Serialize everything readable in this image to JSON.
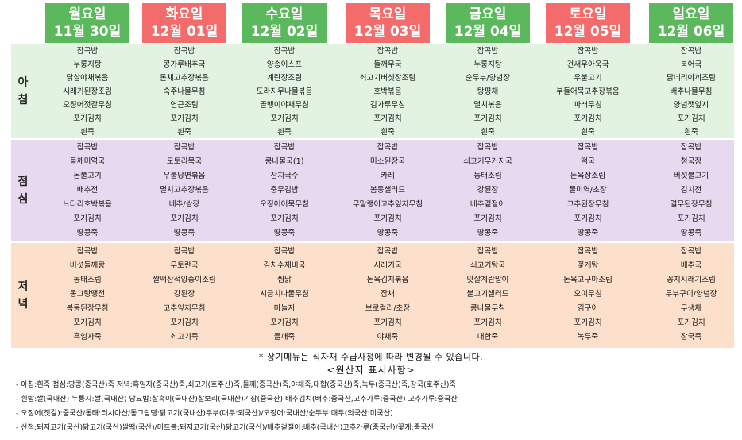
{
  "days": [
    {
      "day": "월요일",
      "date": "11월 30일",
      "color": "#5cb85c"
    },
    {
      "day": "화요일",
      "date": "12월 01일",
      "color": "#f36b6b"
    },
    {
      "day": "수요일",
      "date": "12월 02일",
      "color": "#5cb85c"
    },
    {
      "day": "목요일",
      "date": "12월 03일",
      "color": "#f36b6b"
    },
    {
      "day": "금요일",
      "date": "12월 04일",
      "color": "#5cb85c"
    },
    {
      "day": "토요일",
      "date": "12월 05일",
      "color": "#f36b6b"
    },
    {
      "day": "일요일",
      "date": "12월 06일",
      "color": "#5cb85c"
    }
  ],
  "meal_labels": {
    "breakfast": [
      "아",
      "침"
    ],
    "lunch": [
      "점",
      "심"
    ],
    "dinner": [
      "저",
      "녁"
    ]
  },
  "breakfast": [
    [
      "잡곡밥",
      "누룽지탕",
      "닭살야채볶음",
      "시래기된장조림",
      "오징어젓갈무침",
      "포기김치",
      "흰죽"
    ],
    [
      "잡곡밥",
      "콩가루배추국",
      "돈채고추장볶음",
      "숙주나물무침",
      "연근조림",
      "포기김치",
      "흰죽"
    ],
    [
      "잡곡밥",
      "양송이스프",
      "계란장조림",
      "도라지무나물볶음",
      "골뱅이야채무침",
      "포기김치",
      "흰죽"
    ],
    [
      "잡곡밥",
      "들깨무국",
      "쇠고기버섯장조림",
      "호박볶음",
      "김가루무침",
      "포기김치",
      "흰죽"
    ],
    [
      "잡곡밥",
      "누룽지탕",
      "순두부/양념장",
      "탕평채",
      "멸치볶음",
      "포기김치",
      "흰죽"
    ],
    [
      "잡곡밥",
      "건새우아욱국",
      "우불고기",
      "부들어묵고추장볶음",
      "파래무침",
      "포기김치",
      "흰죽"
    ],
    [
      "잡곡밥",
      "북어국",
      "닭데리야끼조림",
      "배추나물무침",
      "양념깻잎지",
      "포기김치",
      "흰죽"
    ]
  ],
  "lunch": [
    [
      "잡곡밥",
      "들깨미역국",
      "돈불고기",
      "배추전",
      "느타리호박볶음",
      "포기김치",
      "땅콩죽"
    ],
    [
      "잡곡밥",
      "도토리묵국",
      "우불당면볶음",
      "멸치고추장볶음",
      "배추/쌈장",
      "포기김치",
      "땅콩죽"
    ],
    [
      "잡곡밥",
      "콩나물국(1)",
      "잔치국수",
      "충무김밥",
      "오징어어묵무침",
      "포기김치",
      "땅콩죽"
    ],
    [
      "잡곡밥",
      "미소된장국",
      "카레",
      "봄동샐러드",
      "무말랭이고추잎지무침",
      "포기김치",
      "땅콩죽"
    ],
    [
      "잡곡밥",
      "쇠고기무거지국",
      "동태조림",
      "강된장",
      "배추겉절이",
      "포기김치",
      "땅콩죽"
    ],
    [
      "잡곡밥",
      "떡국",
      "돈육장조림",
      "물미역/초장",
      "고추된장무침",
      "포기김치",
      "땅콩죽"
    ],
    [
      "잡곡밥",
      "청국장",
      "버섯불고기",
      "김치전",
      "열무된장무침",
      "포기김치",
      "땅콩죽"
    ]
  ],
  "dinner": [
    [
      "잡곡밥",
      "버섯들깨탕",
      "동태조림",
      "동그랑땡전",
      "봄동된장무침",
      "포기김치",
      "흑임자죽"
    ],
    [
      "잡곡밥",
      "우토란국",
      "쌀떡산적양송이조림",
      "강된장",
      "고추잎지무침",
      "포기김치",
      "쇠고기죽"
    ],
    [
      "잡곡밥",
      "김치수제비국",
      "찜닭",
      "시금치나물무침",
      "마늘지",
      "포기김치",
      "들깨죽"
    ],
    [
      "잡곡밥",
      "시래기국",
      "돈육김치볶음",
      "잡채",
      "브로컬리/초장",
      "포기김치",
      "야채죽"
    ],
    [
      "잡곡밥",
      "쇠고기탕국",
      "맛살계란말이",
      "불고기샐러드",
      "콩나물무침",
      "포기김치",
      "대합죽"
    ],
    [
      "잡곡밥",
      "꽃게탕",
      "돈육고구마조림",
      "오이무침",
      "김구이",
      "포기김치",
      "녹두죽"
    ],
    [
      "잡곡밥",
      "배추국",
      "꽁치시래기조림",
      "두부구이/양념장",
      "무생채",
      "포기김치",
      "장국죽"
    ]
  ],
  "notice": "* 상기메뉴는 식자재 수급사정에 따라 변경될 수 있습니다.",
  "origin_title": "<원산지 표시사항>",
  "origin_lines": [
    "- 아침:흰죽  점심:땅콩(중국산)죽  저녁:흑임자(중국산)죽,쇠고기(호주산)죽,들깨(중국산)죽,야채죽,대합(중국산)죽,녹두(중국산)죽,장국(호주산)죽",
    "- 흰밥:쌀(국내산)  누룽지:쌀(국내산)  당뇨밥:찰흑미(국내산)찰보리(국내산)기장(중국산)  배추김치(배추:중국산,고추가루:중국산)  고추가루:중국산",
    "- 오징어(젓갈):중국산/동태:러시아산/동그랑땡:닭고기(국내산)두부(대두:외국산)/오징어:국내산/순두부:대두(외국산:미국산)",
    "- 산적:돼지고기(국산)닭고기(국산)쌀떡(국산)/미트볼:돼지고기(국산)닭고기(국산)/배추겉절이:배추(국내산)고추가루(중국산)/꽃게:중국산"
  ]
}
